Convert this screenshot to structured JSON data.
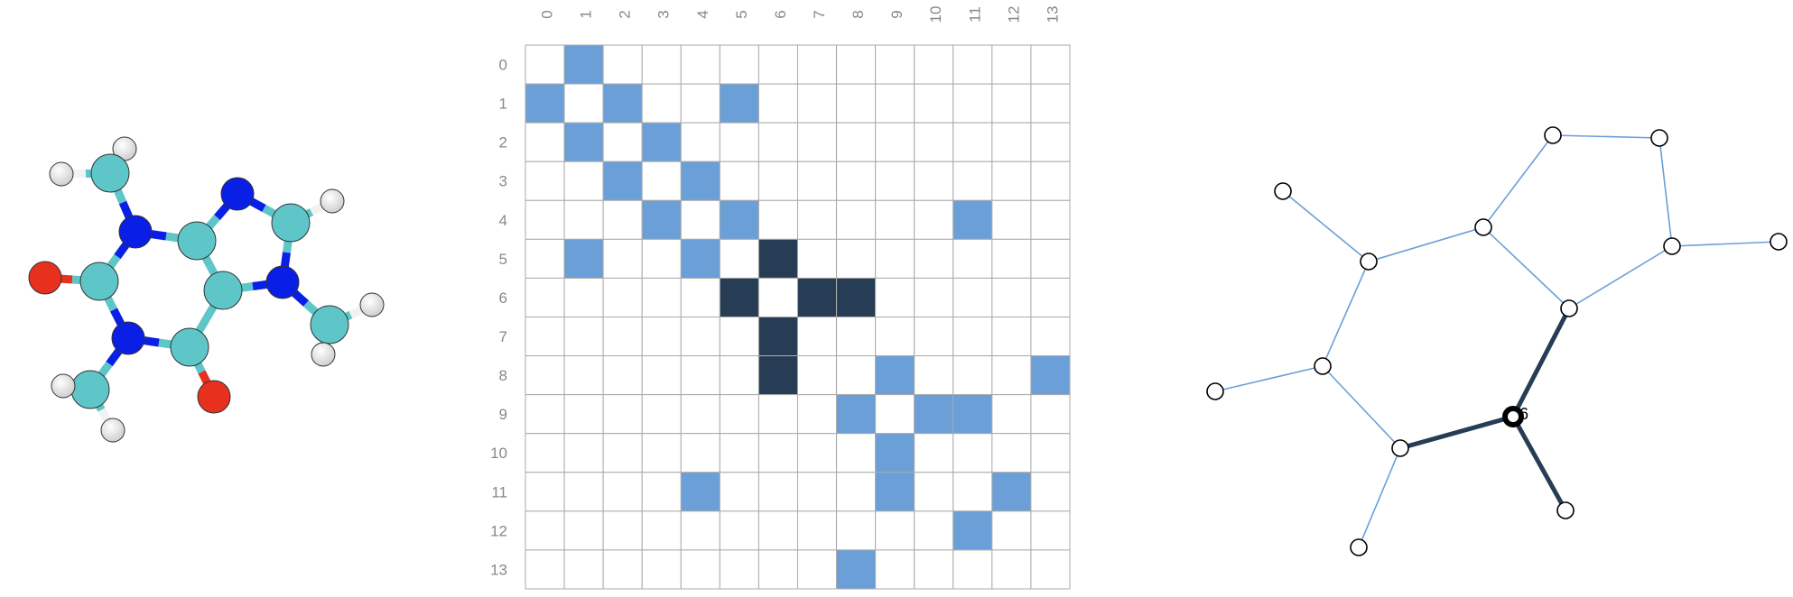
{
  "colors": {
    "edge": "#6a9fd8",
    "highlight": "#263d55",
    "carbon": "#5ec6c8",
    "nitrogen": "#0a1fe6",
    "oxygen": "#e8301e",
    "hydrogen": "#ffffff",
    "grid": "#aaaaaa",
    "label": "#888888"
  },
  "molecule": {
    "atoms": [
      {
        "el": "H"
      },
      {
        "el": "H"
      },
      {
        "el": "C"
      },
      {
        "el": "N"
      },
      {
        "el": "N"
      },
      {
        "el": "C"
      },
      {
        "el": "C"
      },
      {
        "el": "H"
      },
      {
        "el": "C"
      },
      {
        "el": "O"
      },
      {
        "el": "C"
      },
      {
        "el": "N"
      },
      {
        "el": "N"
      },
      {
        "el": "C"
      },
      {
        "el": "O"
      },
      {
        "el": "C"
      },
      {
        "el": "H"
      },
      {
        "el": "H"
      },
      {
        "el": "C"
      },
      {
        "el": "H"
      },
      {
        "el": "H"
      }
    ],
    "bonds": [
      [
        0,
        2
      ],
      [
        1,
        2
      ],
      [
        2,
        3
      ],
      [
        3,
        5
      ],
      [
        3,
        8
      ],
      [
        5,
        4
      ],
      [
        4,
        6
      ],
      [
        6,
        7
      ],
      [
        6,
        11
      ],
      [
        5,
        10
      ],
      [
        10,
        11
      ],
      [
        8,
        9
      ],
      [
        8,
        12
      ],
      [
        12,
        13
      ],
      [
        13,
        10
      ],
      [
        13,
        14
      ],
      [
        11,
        15
      ],
      [
        15,
        16
      ],
      [
        15,
        17
      ],
      [
        12,
        18
      ],
      [
        18,
        19
      ],
      [
        18,
        20
      ]
    ]
  },
  "matrix": {
    "labels": [
      "0",
      "1",
      "2",
      "3",
      "4",
      "5",
      "6",
      "7",
      "8",
      "9",
      "10",
      "11",
      "12",
      "13"
    ],
    "highlighted_node": 6
  },
  "graph": {
    "edges": [
      [
        0,
        1
      ],
      [
        1,
        2
      ],
      [
        1,
        5
      ],
      [
        2,
        3
      ],
      [
        3,
        4
      ],
      [
        4,
        5
      ],
      [
        4,
        11
      ],
      [
        5,
        6
      ],
      [
        6,
        7
      ],
      [
        6,
        8
      ],
      [
        8,
        9
      ],
      [
        8,
        13
      ],
      [
        9,
        10
      ],
      [
        9,
        11
      ],
      [
        11,
        12
      ]
    ],
    "highlighted_node": 6,
    "highlighted_label": "6"
  }
}
